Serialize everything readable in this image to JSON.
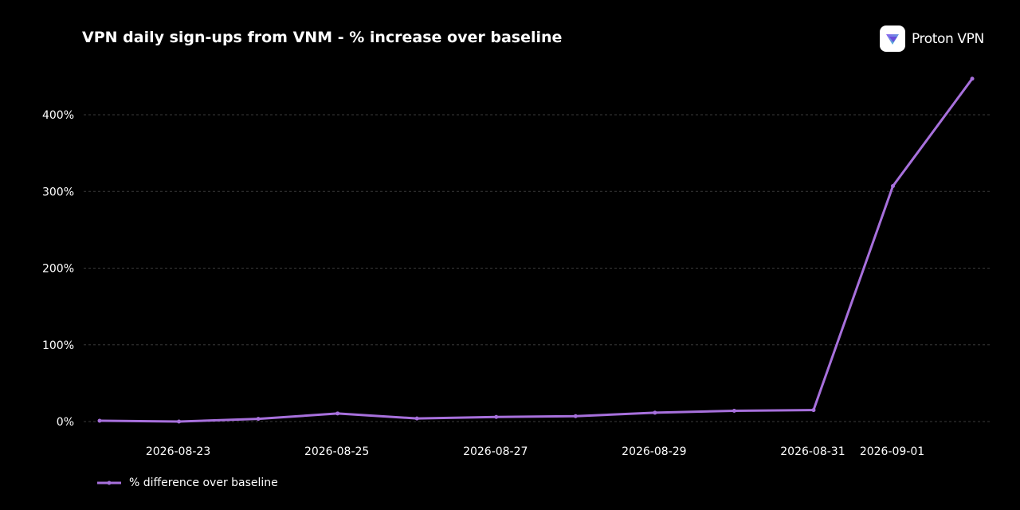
{
  "title": "VPN daily sign-ups from VNM - % increase over baseline",
  "brand": {
    "name": "Proton VPN",
    "icon": "proton-vpn-logo-icon"
  },
  "colors": {
    "background": "#000000",
    "line": "#a770dc",
    "grid": "#3a3a3a",
    "text": "#ffffff"
  },
  "chart_data": {
    "type": "line",
    "title": "VPN daily sign-ups from VNM - % increase over baseline",
    "xlabel": "",
    "ylabel": "",
    "x": [
      "2026-08-22",
      "2026-08-23",
      "2026-08-24",
      "2026-08-25",
      "2026-08-26",
      "2026-08-27",
      "2026-08-28",
      "2026-08-29",
      "2026-08-30",
      "2026-08-31",
      "2026-09-01",
      "2026-09-02"
    ],
    "x_tick_labels": [
      "2026-08-23",
      "2026-08-25",
      "2026-08-27",
      "2026-08-29",
      "2026-08-31",
      "2026-09-01"
    ],
    "y_ticks": [
      0,
      100,
      200,
      300,
      400
    ],
    "y_tick_labels": [
      "0%",
      "100%",
      "200%",
      "300%",
      "400%"
    ],
    "ylim": [
      0,
      400
    ],
    "grid": true,
    "legend_position": "bottom-left",
    "series": [
      {
        "name": "% difference over baseline",
        "values": [
          1,
          0,
          3.5,
          10.5,
          4,
          6,
          7,
          11.5,
          14,
          15,
          307,
          447
        ]
      }
    ]
  }
}
